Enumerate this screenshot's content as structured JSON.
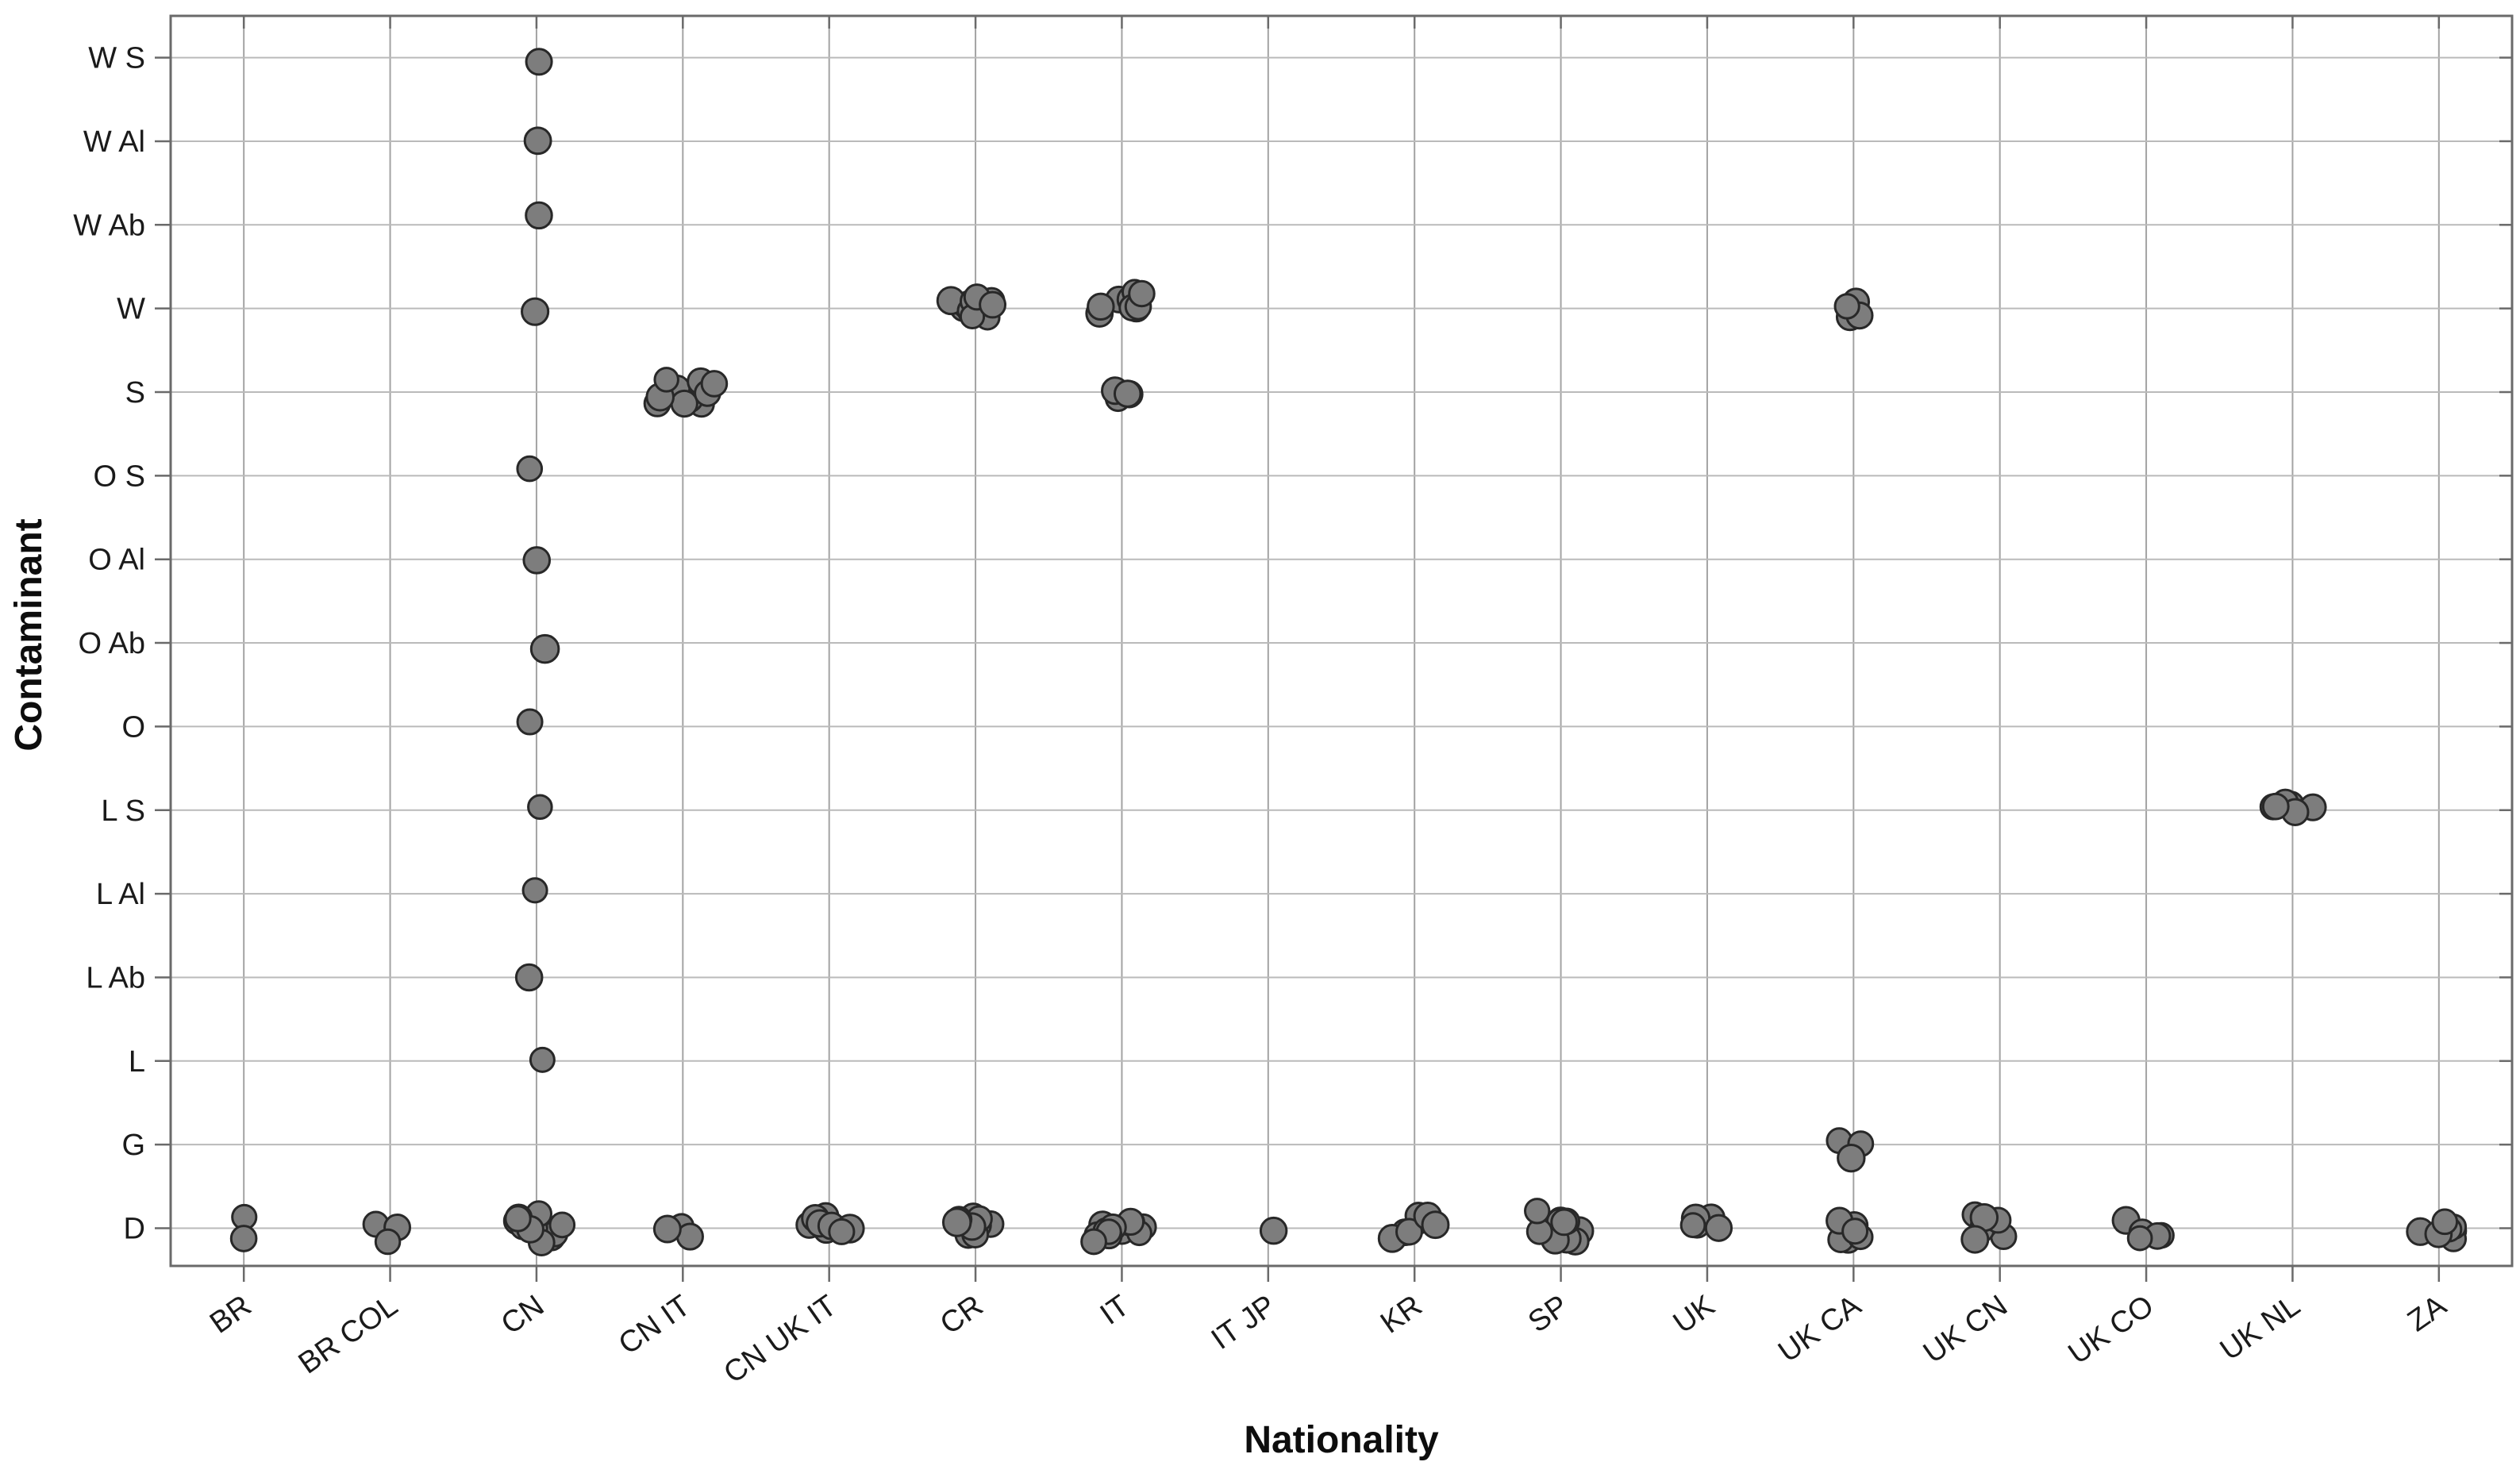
{
  "chart_data": {
    "type": "scatter",
    "variant": "categorical-jitter-strip-plot",
    "title": "",
    "xlabel": "Nationality",
    "ylabel": "Contaminant",
    "x_categories": [
      "BR",
      "BR COL",
      "CN",
      "CN IT",
      "CN UK IT",
      "CR",
      "IT",
      "IT JP",
      "KR",
      "SP",
      "UK",
      "UK CA",
      "UK CN",
      "UK CO",
      "UK NL",
      "ZA"
    ],
    "y_categories_bottom_to_top": [
      "D",
      "G",
      "L",
      "L Ab",
      "L Al",
      "L S",
      "O",
      "O Ab",
      "O Al",
      "O S",
      "S",
      "W",
      "W Ab",
      "W Al",
      "W S"
    ],
    "groups": [
      {
        "x": "BR",
        "y": "D",
        "count": 2
      },
      {
        "x": "BR COL",
        "y": "D",
        "count": 3
      },
      {
        "x": "CN",
        "y": "W S",
        "count": 1
      },
      {
        "x": "CN",
        "y": "W Al",
        "count": 1
      },
      {
        "x": "CN",
        "y": "W Ab",
        "count": 1
      },
      {
        "x": "CN",
        "y": "W",
        "count": 1
      },
      {
        "x": "CN",
        "y": "O S",
        "count": 1
      },
      {
        "x": "CN",
        "y": "O Al",
        "count": 1
      },
      {
        "x": "CN",
        "y": "O Ab",
        "count": 1
      },
      {
        "x": "CN",
        "y": "O",
        "count": 1
      },
      {
        "x": "CN",
        "y": "L S",
        "count": 1
      },
      {
        "x": "CN",
        "y": "L Al",
        "count": 1
      },
      {
        "x": "CN",
        "y": "L Ab",
        "count": 1
      },
      {
        "x": "CN",
        "y": "L",
        "count": 1
      },
      {
        "x": "CN",
        "y": "D",
        "count": 14
      },
      {
        "x": "CN IT",
        "y": "S",
        "count": 10
      },
      {
        "x": "CN IT",
        "y": "D",
        "count": 4
      },
      {
        "x": "CN UK IT",
        "y": "D",
        "count": 8
      },
      {
        "x": "CR",
        "y": "W",
        "count": 10
      },
      {
        "x": "CR",
        "y": "D",
        "count": 9
      },
      {
        "x": "IT",
        "y": "W",
        "count": 9
      },
      {
        "x": "IT",
        "y": "S",
        "count": 4
      },
      {
        "x": "IT",
        "y": "D",
        "count": 12
      },
      {
        "x": "IT JP",
        "y": "D",
        "count": 1
      },
      {
        "x": "KR",
        "y": "D",
        "count": 7
      },
      {
        "x": "SP",
        "y": "D",
        "count": 10
      },
      {
        "x": "UK",
        "y": "D",
        "count": 5
      },
      {
        "x": "UK CA",
        "y": "W",
        "count": 4
      },
      {
        "x": "UK CA",
        "y": "G",
        "count": 3
      },
      {
        "x": "UK CA",
        "y": "D",
        "count": 6
      },
      {
        "x": "UK CN",
        "y": "D",
        "count": 7
      },
      {
        "x": "UK CO",
        "y": "D",
        "count": 5
      },
      {
        "x": "UK NL",
        "y": "L S",
        "count": 6
      },
      {
        "x": "ZA",
        "y": "D",
        "count": 7
      }
    ],
    "style": {
      "background": "#ffffff",
      "marker_fill": "#7d7d7d",
      "marker_stroke": "#282828",
      "marker_radius_px": 16,
      "grid_vertical_color": "#a3a3a3",
      "grid_horizontal_color": "#bababa",
      "border_color": "#6a6a6a",
      "tick_color": "#6a6a6a",
      "label_color": "#1a1a1a"
    },
    "grid": true,
    "legend": null,
    "x_tick_rotation_deg": 35
  }
}
